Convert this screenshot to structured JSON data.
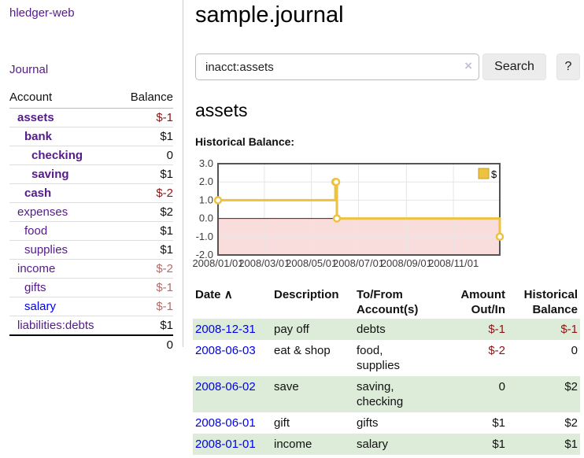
{
  "app": {
    "brand": "hledger-web",
    "nav_journal": "Journal"
  },
  "sidebar": {
    "headers": {
      "account": "Account",
      "balance": "Balance"
    },
    "accounts": [
      {
        "name": "assets",
        "depth": 0,
        "bold": true,
        "balance": "$-1",
        "neg": "strong"
      },
      {
        "name": "bank",
        "depth": 1,
        "bold": true,
        "balance": "$1"
      },
      {
        "name": "checking",
        "depth": 2,
        "bold": true,
        "balance": "0"
      },
      {
        "name": "saving",
        "depth": 2,
        "bold": true,
        "balance": "$1"
      },
      {
        "name": "cash",
        "depth": 1,
        "bold": true,
        "balance": "$-2",
        "neg": "strong"
      },
      {
        "name": "expenses",
        "depth": 0,
        "bold": false,
        "balance": "$2"
      },
      {
        "name": "food",
        "depth": 1,
        "bold": false,
        "balance": "$1"
      },
      {
        "name": "supplies",
        "depth": 1,
        "bold": false,
        "balance": "$1"
      },
      {
        "name": "income",
        "depth": 0,
        "bold": false,
        "balance": "$-2",
        "neg": "soft"
      },
      {
        "name": "gifts",
        "depth": 1,
        "bold": false,
        "balance": "$-1",
        "neg": "soft"
      },
      {
        "name": "salary",
        "depth": 1,
        "bold": false,
        "balance": "$-1",
        "neg": "soft",
        "blue": true
      },
      {
        "name": "liabilities:debts",
        "depth": 0,
        "bold": false,
        "balance": "$1"
      }
    ],
    "total": "0"
  },
  "header": {
    "title": "sample.journal"
  },
  "search": {
    "value": "inacct:assets",
    "clear_icon": "×",
    "button": "Search",
    "help_button": "?"
  },
  "main": {
    "account_heading": "assets",
    "chart_label": "Historical Balance:"
  },
  "chart_data": {
    "type": "line",
    "step": true,
    "title": "Historical Balance",
    "series": [
      {
        "name": "$",
        "color": "#edc240",
        "points": [
          {
            "x": "2008-01-01",
            "y": 1
          },
          {
            "x": "2008-06-01",
            "y": 2
          },
          {
            "x": "2008-06-02",
            "y": 2
          },
          {
            "x": "2008-06-03",
            "y": 0
          },
          {
            "x": "2008-12-31",
            "y": -1
          }
        ]
      }
    ],
    "xrange": [
      "2008-01-01",
      "2008-12-31"
    ],
    "ylim": [
      -2,
      3
    ],
    "yticks": [
      {
        "v": 3,
        "label": "3.0"
      },
      {
        "v": 2,
        "label": "2.0"
      },
      {
        "v": 1,
        "label": "1.0"
      },
      {
        "v": 0,
        "label": "0.0"
      },
      {
        "v": -1,
        "label": "-1.0"
      },
      {
        "v": -2,
        "label": "-2.0"
      }
    ],
    "xticks": [
      {
        "d": "2008-01-01",
        "label": "2008/01/01"
      },
      {
        "d": "2008-03-01",
        "label": "2008/03/01"
      },
      {
        "d": "2008-05-01",
        "label": "2008/05/01"
      },
      {
        "d": "2008-07-01",
        "label": "2008/07/01"
      },
      {
        "d": "2008-09-01",
        "label": "2008/09/01"
      },
      {
        "d": "2008-11-01",
        "label": "2008/11/01"
      }
    ],
    "grid": true,
    "legend": {
      "label": "$",
      "position": "top-right"
    },
    "colors": {
      "border": "#545454",
      "gridline": "#e6e6e6",
      "tick_text": "#3c3c3c",
      "negative_region": "#f9dcdc",
      "zero_line": "#8b0000",
      "marker_fill": "#ffffff",
      "legend_box_border": "#c5a02c"
    }
  },
  "register": {
    "headers": {
      "date": "Date",
      "sort_icon": "∧",
      "description": "Description",
      "tofrom": "To/From Account(s)",
      "amount": "Amount Out/In",
      "balance": "Historical Balance"
    },
    "rows": [
      {
        "date": "2008-12-31",
        "description": "pay off",
        "accounts": "debts",
        "amount": "$-1",
        "amount_neg": true,
        "balance": "$-1",
        "balance_neg": true,
        "shade": true
      },
      {
        "date": "2008-06-03",
        "description": "eat & shop",
        "accounts": "food, supplies",
        "amount": "$-2",
        "amount_neg": true,
        "balance": "0",
        "balance_neg": false,
        "shade": false
      },
      {
        "date": "2008-06-02",
        "description": "save",
        "accounts": "saving, checking",
        "amount": "0",
        "amount_neg": false,
        "balance": "$2",
        "balance_neg": false,
        "shade": true
      },
      {
        "date": "2008-06-01",
        "description": "gift",
        "accounts": "gifts",
        "amount": "$1",
        "amount_neg": false,
        "balance": "$2",
        "balance_neg": false,
        "shade": false
      },
      {
        "date": "2008-01-01",
        "description": "income",
        "accounts": "salary",
        "amount": "$1",
        "amount_neg": false,
        "balance": "$1",
        "balance_neg": false,
        "shade": true
      }
    ]
  },
  "colors": {
    "link_purple": "#551A8B",
    "link_blue": "#0000EE",
    "negative_strong": "#8f1414",
    "negative_soft": "#b56a6a",
    "row_green": "#dcecd8",
    "series_yellow": "#edc240"
  }
}
